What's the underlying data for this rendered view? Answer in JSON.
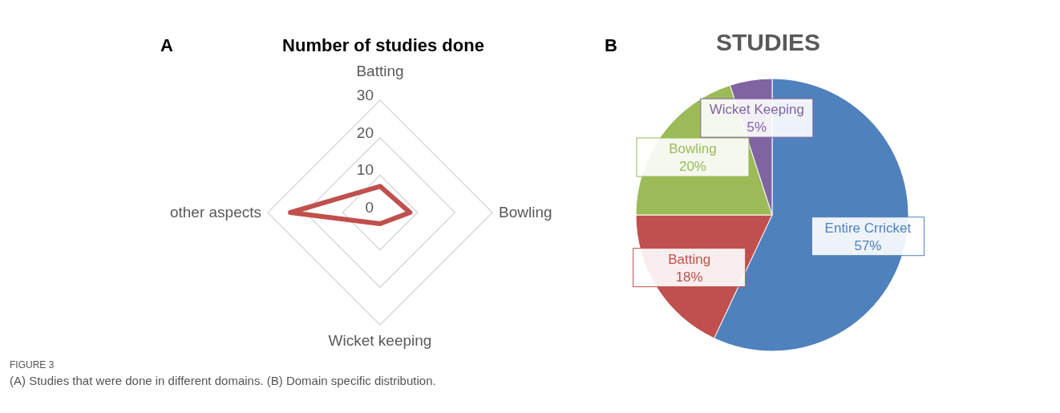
{
  "chart_data": [
    {
      "type": "radar",
      "title": "Number of studies done",
      "categories": [
        "Batting",
        "Bowling",
        "Wicket keeping",
        "other aspects"
      ],
      "series": [
        {
          "color": "#c0504d",
          "values": [
            7,
            8,
            3,
            24
          ]
        }
      ],
      "ylim": [
        0,
        30
      ],
      "yticks": [
        0,
        10,
        20,
        30
      ],
      "grid": true,
      "marker": "none",
      "annotations": [
        "A",
        "FIGURE 3",
        "(A) Studies that were done in different domains. (B) Domain specific distribution."
      ]
    },
    {
      "type": "pie",
      "title": "STUDIES",
      "categories": [
        "Entire Crricket",
        "Batting",
        "Bowling",
        "Wicket Keeping"
      ],
      "values": [
        57,
        18,
        20,
        5
      ],
      "colors": [
        "#4f81bd",
        "#c0504d",
        "#9bbb59",
        "#8064a2"
      ],
      "value_labels": [
        "57%",
        "18%",
        "20%",
        "5%"
      ],
      "annotations": [
        "B"
      ]
    }
  ]
}
